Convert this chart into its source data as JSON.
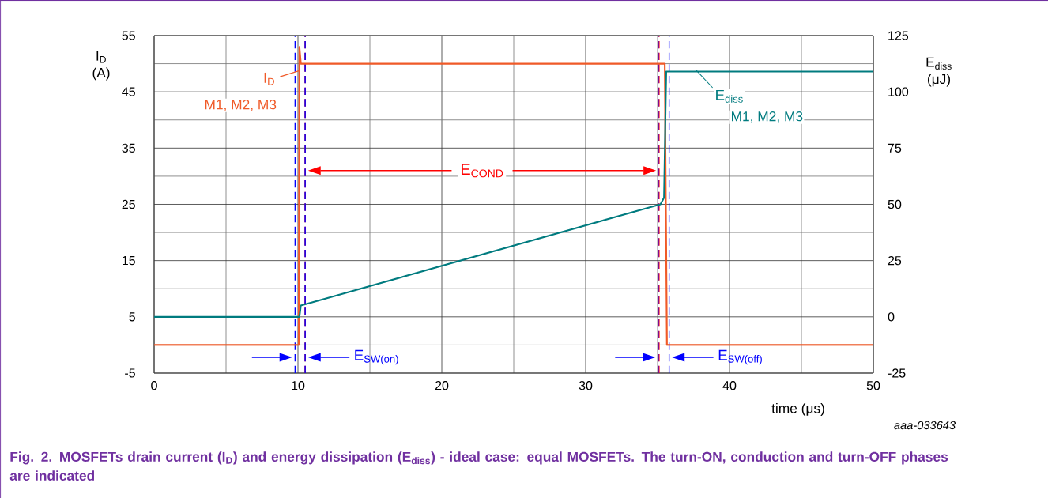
{
  "chart_data": {
    "type": "line",
    "title": "Fig. 2. MOSFETs drain current (I$_{D}$) and energy dissipation (E$_{diss}$) - ideal case: equal MOSFETs. The turn-ON, conduction and turn-OFF phases are indicated",
    "xlabel": "time (μs)",
    "ylabel": "I$_{D}$ (A)",
    "y2label": "E$_{diss}$ (μJ)",
    "xlim": [
      0,
      50
    ],
    "xticks": [
      0,
      10,
      20,
      30,
      40,
      50
    ],
    "ylim": [
      -5,
      55
    ],
    "yticks": [
      -5,
      5,
      15,
      25,
      35,
      45,
      55
    ],
    "y2lim": [
      -25,
      125
    ],
    "y2ticks": [
      -25,
      0,
      25,
      50,
      75,
      100,
      125
    ],
    "grid": true,
    "series": [
      {
        "name": "I$_{D}$",
        "color": "#f05a28",
        "x": [
          0,
          10.05,
          10.1,
          10.2,
          35.5,
          35.65,
          50
        ],
        "values": [
          0,
          0,
          53,
          50,
          50,
          0,
          0
        ]
      },
      {
        "name": "E$_{diss}$",
        "color": "#007b7f",
        "axis": "y2",
        "x": [
          0,
          10.1,
          10.2,
          35.2,
          35.45,
          35.6,
          50
        ],
        "values": [
          0,
          0,
          5,
          50,
          53,
          109,
          109
        ]
      }
    ],
    "ref_lines": [
      {
        "axis": "x",
        "value": 10.5,
        "color": "#ff0000",
        "line_style": "dashed"
      },
      {
        "axis": "x",
        "value": 35.1,
        "color": "#ff0000",
        "line_style": "dashed"
      },
      {
        "axis": "x",
        "value": 9.8,
        "color": "#0000ff",
        "line_style": "dashed"
      },
      {
        "axis": "x",
        "value": 10.5,
        "color": "#0000ff",
        "line_style": "dashed"
      },
      {
        "axis": "x",
        "value": 35.05,
        "color": "#0000ff",
        "line_style": "dashed"
      },
      {
        "axis": "x",
        "value": 35.8,
        "color": "#0000ff",
        "line_style": "dashed"
      }
    ],
    "annotations": [
      "M1, M2, M3",
      "M1, M2, M3",
      "E$_{COND}$",
      "E$_{SW(on)}$",
      "E$_{SW(off)}$",
      "aaa-033643"
    ]
  }
}
